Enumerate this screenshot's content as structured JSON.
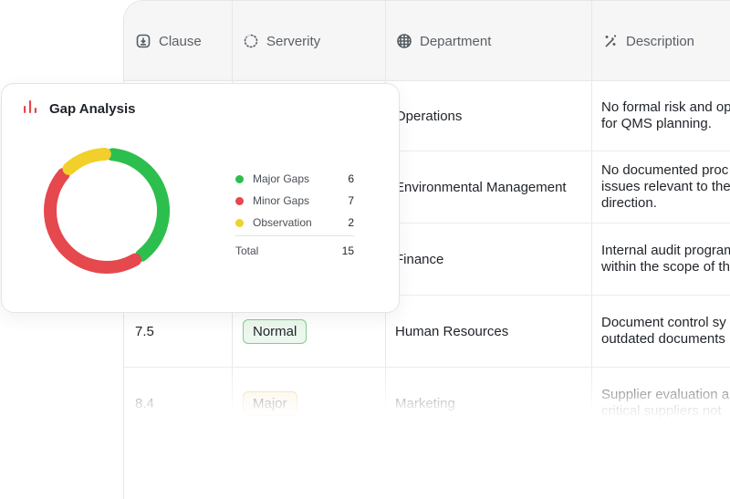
{
  "table": {
    "columns": [
      {
        "label": "Clause",
        "icon": "clock-download-icon"
      },
      {
        "label": "Serverity",
        "icon": "spinner-circle-icon"
      },
      {
        "label": "Department",
        "icon": "grid-globe-icon"
      },
      {
        "label": "Description",
        "icon": "magic-wand-icon"
      }
    ],
    "rows": [
      {
        "clause": "",
        "severity": "",
        "department": "Operations",
        "description": [
          "No formal risk and op",
          "for QMS planning."
        ]
      },
      {
        "clause": "",
        "severity": "",
        "department": "Environmental Management",
        "description": [
          "No documented proc",
          "issues relevant to the",
          "direction."
        ]
      },
      {
        "clause": "",
        "severity": "",
        "department": "Finance",
        "description": [
          "Internal audit program",
          "within the scope of th"
        ]
      },
      {
        "clause": "7.5",
        "severity": "Normal",
        "department": "Human Resources",
        "description": [
          "Document control sy",
          "outdated documents"
        ]
      },
      {
        "clause": "8.4",
        "severity": "Major",
        "department": "Marketing",
        "description": [
          "Supplier evaluation a",
          "critical suppliers not "
        ]
      }
    ]
  },
  "card": {
    "title": "Gap Analysis",
    "icon": "bar-chart-icon",
    "total_label": "Total",
    "total_value": "15"
  },
  "chart_data": {
    "type": "pie",
    "categories": [
      "Major Gaps",
      "Minor Gaps",
      "Observation"
    ],
    "values": [
      6,
      7,
      2
    ],
    "colors": [
      "#2dbf4e",
      "#e5484d",
      "#f2cf2a"
    ],
    "title": "Gap Analysis",
    "legend": "right",
    "total": 15
  },
  "colors": {
    "accent": "#e5484d",
    "normal_badge": "#7fce8c",
    "major_badge": "#eec17a"
  }
}
